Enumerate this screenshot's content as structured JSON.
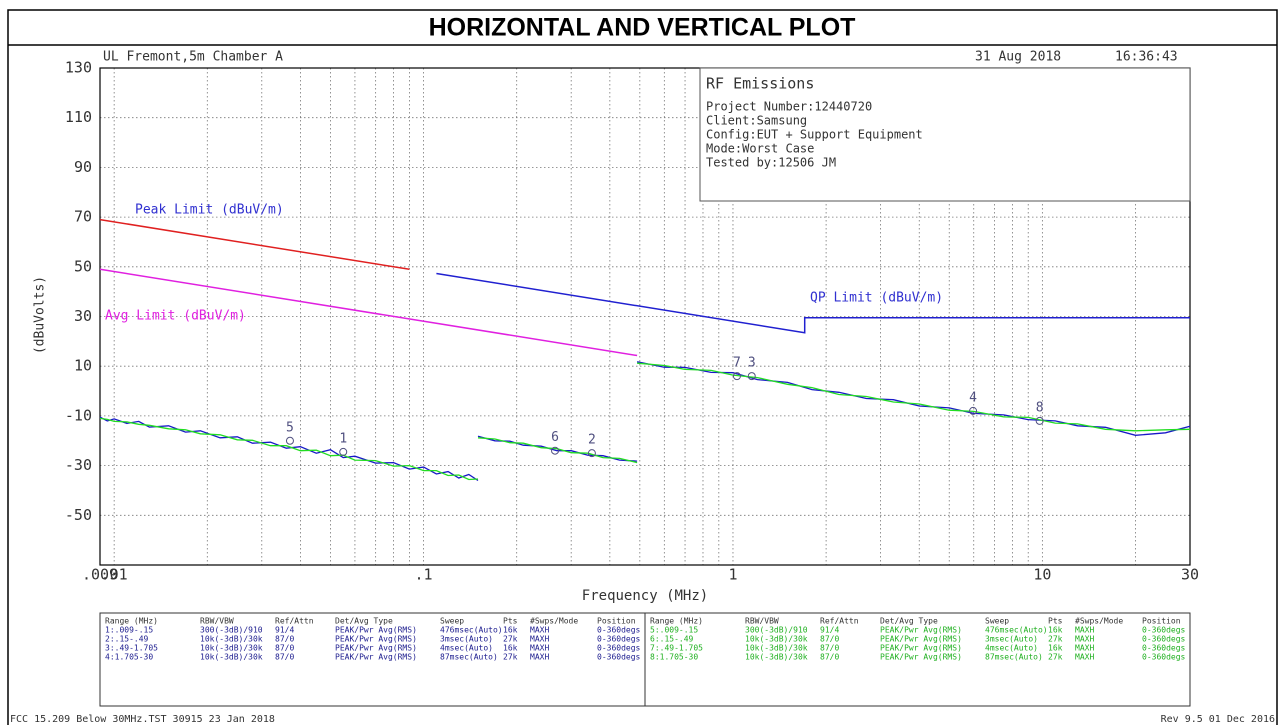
{
  "chart_data": {
    "type": "line",
    "title": "HORIZONTAL AND VERTICAL PLOT",
    "header": {
      "site": "UL Fremont,5m Chamber A",
      "date": "31 Aug 2018",
      "time": "16:36:43"
    },
    "info_box": {
      "title": "RF Emissions",
      "lines": [
        "Project Number:12440720",
        "Client:Samsung",
        "Config:EUT + Support Equipment",
        "Mode:Worst Case",
        "Tested by:12506 JM"
      ]
    },
    "x_label": "Frequency (MHz)",
    "y_label": "(dBuVolts)",
    "log_x": true,
    "grid": true,
    "xlim": [
      0.009,
      30
    ],
    "xticks": [
      {
        "value": 0.009,
        "label": ".009"
      },
      {
        "value": 0.01,
        "label": ".01"
      },
      {
        "value": 0.1,
        "label": ".1"
      },
      1,
      10,
      30
    ],
    "xminorticks": [
      0.02,
      0.03,
      0.04,
      0.05,
      0.06,
      0.07,
      0.08,
      0.09,
      0.2,
      0.3,
      0.4,
      0.5,
      0.6,
      0.7,
      0.8,
      0.9,
      2,
      3,
      4,
      5,
      6,
      7,
      8,
      9,
      20
    ],
    "ylim": [
      -70,
      130
    ],
    "yticks": [
      130,
      110,
      90,
      70,
      50,
      30,
      10,
      -10,
      -30,
      -50
    ],
    "limit_lines": [
      {
        "name": "Peak Limit (dBuV/m)",
        "label_color": "#3030d0",
        "color": "#e02020",
        "x": [
          0.009,
          0.09
        ],
        "values": [
          69,
          49
        ]
      },
      {
        "name": "Avg Limit (dBuV/m)",
        "label_color": "#e020e0",
        "color": "#e020e0",
        "x": [
          0.009,
          0.49
        ],
        "values": [
          49,
          14.3
        ]
      },
      {
        "name": "QP Limit (dBuV/m)",
        "label_color": "#3030d0",
        "color": "#2020d0",
        "x": [
          0.11,
          1.705,
          1.705,
          30
        ],
        "values": [
          47.3,
          23.5,
          29.5,
          29.5
        ]
      }
    ],
    "series": [
      {
        "color": "#1818c8",
        "x": [
          0.009,
          0.0095,
          0.01,
          0.011,
          0.012,
          0.013,
          0.015,
          0.017,
          0.019,
          0.022,
          0.025,
          0.028,
          0.032,
          0.036,
          0.04,
          0.045,
          0.05,
          0.055,
          0.06,
          0.07,
          0.08,
          0.09,
          0.1,
          0.11,
          0.12,
          0.13,
          0.14,
          0.15,
          null,
          0.15,
          0.17,
          0.19,
          0.21,
          0.24,
          0.27,
          0.3,
          0.34,
          0.38,
          0.43,
          0.49,
          null,
          0.49,
          0.6,
          0.7,
          0.85,
          1,
          1.2,
          1.5,
          1.8,
          2.2,
          2.7,
          3.3,
          4,
          5,
          6,
          7.5,
          9,
          11,
          13,
          16,
          20,
          25,
          30
        ],
        "values": [
          -10.5,
          -12,
          -11.2,
          -13,
          -12.2,
          -14.5,
          -14,
          -16.5,
          -16,
          -18.8,
          -18.4,
          -21,
          -20.6,
          -23,
          -22.4,
          -25,
          -23.6,
          -26.8,
          -26.2,
          -29,
          -28.8,
          -31.4,
          -30.6,
          -33.4,
          -32.4,
          -35,
          -33.6,
          -36,
          null,
          -18.2,
          -20,
          -20.2,
          -21.8,
          -22.2,
          -24,
          -24,
          -25.8,
          -26,
          -27.8,
          -28.2,
          null,
          11.8,
          9.6,
          9.5,
          7.5,
          7.4,
          4.6,
          3.5,
          0.6,
          -0.5,
          -3,
          -3.5,
          -6,
          -6.8,
          -9,
          -9.6,
          -11.5,
          -12,
          -14,
          -14.6,
          -17.8,
          -16.8,
          -14.2
        ]
      },
      {
        "color": "#22dd22",
        "x": [
          0.009,
          0.0095,
          0.01,
          0.011,
          0.012,
          0.013,
          0.015,
          0.017,
          0.019,
          0.022,
          0.025,
          0.028,
          0.032,
          0.036,
          0.04,
          0.045,
          0.05,
          0.055,
          0.06,
          0.07,
          0.08,
          0.09,
          0.1,
          0.11,
          0.12,
          0.13,
          0.14,
          0.15,
          null,
          0.15,
          0.17,
          0.19,
          0.21,
          0.24,
          0.27,
          0.3,
          0.34,
          0.38,
          0.43,
          0.49,
          null,
          0.49,
          0.6,
          0.7,
          0.85,
          1,
          1.2,
          1.5,
          1.8,
          2.2,
          2.7,
          3.3,
          4,
          5,
          6,
          7.5,
          9,
          11,
          13,
          16,
          20,
          25,
          30
        ],
        "values": [
          -11,
          -11.4,
          -12.2,
          -12.4,
          -13.4,
          -13.8,
          -15.2,
          -15.6,
          -17.2,
          -17.6,
          -19.6,
          -19.8,
          -22,
          -22,
          -24,
          -23.8,
          -26,
          -25.8,
          -27.8,
          -28,
          -30.2,
          -30,
          -32,
          -32,
          -34,
          -33.8,
          -35.6,
          -35.4,
          null,
          -18.8,
          -19.3,
          -20.8,
          -21,
          -22.8,
          -23.2,
          -24.8,
          -25,
          -26.8,
          -27.1,
          -28.8,
          null,
          11.2,
          10.3,
          8.7,
          8.3,
          6.4,
          5.4,
          2.7,
          1.4,
          -1.4,
          -2.2,
          -4.4,
          -5.2,
          -7.7,
          -8.2,
          -10.4,
          -10.6,
          -12.9,
          -13.2,
          -15.4,
          -16,
          -15.6,
          -15.4
        ]
      }
    ],
    "markers": [
      {
        "label": "5",
        "x": 0.037,
        "y": -20
      },
      {
        "label": "1",
        "x": 0.055,
        "y": -24.5
      },
      {
        "label": "6",
        "x": 0.266,
        "y": -24
      },
      {
        "label": "2",
        "x": 0.35,
        "y": -25
      },
      {
        "label": "7",
        "x": 1.03,
        "y": 6
      },
      {
        "label": "3",
        "x": 1.15,
        "y": 6
      },
      {
        "label": "4",
        "x": 5.97,
        "y": -8
      },
      {
        "label": "8",
        "x": 9.8,
        "y": -12
      }
    ],
    "marker_color": "#505080",
    "table": [
      {
        "color": "#202090",
        "header": [
          "Range (MHz)",
          "RBW/VBW",
          "Ref/Attn",
          "Det/Avg Type",
          "Sweep",
          "Pts",
          "#Swps/Mode",
          "Position"
        ],
        "rows": [
          [
            "1:.009-.15",
            "300(-3dB)/910",
            "91/4",
            "PEAK/Pwr Avg(RMS)",
            "476msec(Auto)",
            "16k",
            "MAXH",
            "0-360degs"
          ],
          [
            "2:.15-.49",
            "10k(-3dB)/30k",
            "87/0",
            "PEAK/Pwr Avg(RMS)",
            "3msec(Auto)",
            "27k",
            "MAXH",
            "0-360degs"
          ],
          [
            "3:.49-1.705",
            "10k(-3dB)/30k",
            "87/0",
            "PEAK/Pwr Avg(RMS)",
            "4msec(Auto)",
            "16k",
            "MAXH",
            "0-360degs"
          ],
          [
            "4:1.705-30",
            "10k(-3dB)/30k",
            "87/0",
            "PEAK/Pwr Avg(RMS)",
            "87msec(Auto)",
            "27k",
            "MAXH",
            "0-360degs"
          ]
        ]
      },
      {
        "color": "#20b020",
        "header": [
          "Range (MHz)",
          "RBW/VBW",
          "Ref/Attn",
          "Det/Avg Type",
          "Sweep",
          "Pts",
          "#Swps/Mode",
          "Position"
        ],
        "rows": [
          [
            "5:.009-.15",
            "300(-3dB)/910",
            "91/4",
            "PEAK/Pwr Avg(RMS)",
            "476msec(Auto)",
            "16k",
            "MAXH",
            "0-360degs"
          ],
          [
            "6:.15-.49",
            "10k(-3dB)/30k",
            "87/0",
            "PEAK/Pwr Avg(RMS)",
            "3msec(Auto)",
            "27k",
            "MAXH",
            "0-360degs"
          ],
          [
            "7:.49-1.705",
            "10k(-3dB)/30k",
            "87/0",
            "PEAK/Pwr Avg(RMS)",
            "4msec(Auto)",
            "16k",
            "MAXH",
            "0-360degs"
          ],
          [
            "8:1.705-30",
            "10k(-3dB)/30k",
            "87/0",
            "PEAK/Pwr Avg(RMS)",
            "87msec(Auto)",
            "27k",
            "MAXH",
            "0-360degs"
          ]
        ]
      }
    ],
    "footer": {
      "left": "FCC 15.209 Below 30MHz.TST 30915 23 Jan 2018",
      "right": "Rev 9.5 01 Dec 2016"
    }
  }
}
